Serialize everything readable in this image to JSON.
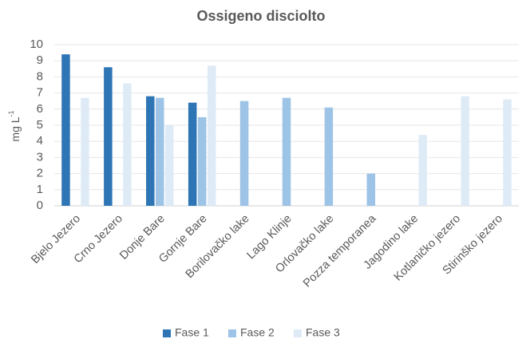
{
  "chart_data": {
    "type": "bar",
    "title": "Ossigeno disciolto",
    "y_label": "mg L",
    "y_label_superscript": "-1",
    "categories": [
      "Bjelo Jezero",
      "Crno Jezero",
      "Donje Bare",
      "Gornje Bare",
      "Borilovačko lake",
      "Lago Klinje",
      "Orlovačko lake",
      "Pozza temporanea",
      "Jagodino lake",
      "Kotlaničko jezero",
      "Stirinško jezero"
    ],
    "series": [
      {
        "name": "Fase 1",
        "color": "#2e75b6",
        "values": [
          9.4,
          8.6,
          6.8,
          6.4,
          null,
          null,
          null,
          null,
          null,
          null,
          null
        ]
      },
      {
        "name": "Fase 2",
        "color": "#9dc3e6",
        "values": [
          null,
          null,
          6.7,
          5.5,
          6.5,
          6.7,
          6.1,
          2.0,
          null,
          null,
          null
        ]
      },
      {
        "name": "Fase 3",
        "color": "#deebf7",
        "values": [
          6.7,
          7.6,
          5.0,
          8.7,
          null,
          null,
          null,
          null,
          4.4,
          6.8,
          6.6
        ]
      }
    ],
    "ylim": [
      0,
      10
    ],
    "yticks": [
      0,
      1,
      2,
      3,
      4,
      5,
      6,
      7,
      8,
      9,
      10
    ],
    "grid": true,
    "legend": "bottom"
  }
}
